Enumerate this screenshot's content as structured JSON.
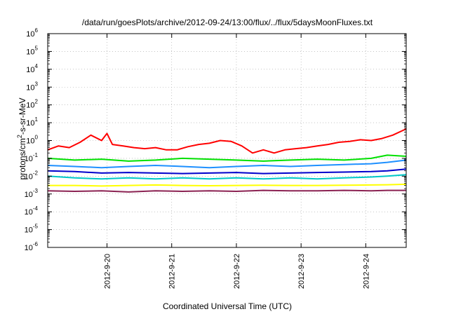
{
  "chart_data": {
    "type": "line",
    "title": "/data/run/goesPlots/archive/2012-09-24/13:00/flux/../flux/5daysMoonFluxes.txt",
    "xlabel": "Coordinated Universal Time (UTC)",
    "ylabel": {
      "pre": "protons/cm",
      "sup": "2",
      "post": "-s-sr-MeV"
    },
    "yscale": "log",
    "ylim": [
      1e-06,
      1000000.0
    ],
    "y_ticks": [
      {
        "mant": "10",
        "exp": "-6"
      },
      {
        "mant": "10",
        "exp": "-5"
      },
      {
        "mant": "10",
        "exp": "-4"
      },
      {
        "mant": "10",
        "exp": "-3"
      },
      {
        "mant": "10",
        "exp": "-2"
      },
      {
        "mant": "10",
        "exp": "-1"
      },
      {
        "mant": "10",
        "exp": "0"
      },
      {
        "mant": "10",
        "exp": "1"
      },
      {
        "mant": "10",
        "exp": "2"
      },
      {
        "mant": "10",
        "exp": "3"
      },
      {
        "mant": "10",
        "exp": "4"
      },
      {
        "mant": "10",
        "exp": "5"
      },
      {
        "mant": "10",
        "exp": "6"
      }
    ],
    "xlim": [
      "2012-09-19 02:00",
      "2012-09-24 15:00"
    ],
    "x_ticks": [
      "2012-9-20",
      "2012-9-21",
      "2012-9-22",
      "2012-9-23",
      "2012-9-24"
    ],
    "grid": true,
    "series": [
      {
        "color": "#ff0000",
        "x": [
          "2012-09-19 02:00",
          "2012-09-19 06:00",
          "2012-09-19 10:00",
          "2012-09-19 14:00",
          "2012-09-19 18:00",
          "2012-09-19 22:00",
          "2012-09-20 00:00",
          "2012-09-20 02:00",
          "2012-09-20 06:00",
          "2012-09-20 10:00",
          "2012-09-20 14:00",
          "2012-09-20 18:00",
          "2012-09-20 22:00",
          "2012-09-21 02:00",
          "2012-09-21 06:00",
          "2012-09-21 10:00",
          "2012-09-21 14:00",
          "2012-09-21 18:00",
          "2012-09-21 22:00",
          "2012-09-22 02:00",
          "2012-09-22 06:00",
          "2012-09-22 10:00",
          "2012-09-22 14:00",
          "2012-09-22 18:00",
          "2012-09-22 22:00",
          "2012-09-23 02:00",
          "2012-09-23 06:00",
          "2012-09-23 10:00",
          "2012-09-23 14:00",
          "2012-09-23 18:00",
          "2012-09-23 22:00",
          "2012-09-24 02:00",
          "2012-09-24 06:00",
          "2012-09-24 10:00",
          "2012-09-24 15:00"
        ],
        "values": [
          0.3,
          0.5,
          0.4,
          0.8,
          2.0,
          1.0,
          2.5,
          0.6,
          0.5,
          0.4,
          0.35,
          0.4,
          0.3,
          0.3,
          0.45,
          0.6,
          0.7,
          1.0,
          0.9,
          0.5,
          0.2,
          0.3,
          0.2,
          0.3,
          0.35,
          0.4,
          0.5,
          0.6,
          0.8,
          0.9,
          1.1,
          1.0,
          1.3,
          2.0,
          4.5
        ]
      },
      {
        "color": "#00e000",
        "x": [
          "2012-09-19 02:00",
          "2012-09-19 12:00",
          "2012-09-19 22:00",
          "2012-09-20 08:00",
          "2012-09-20 18:00",
          "2012-09-21 04:00",
          "2012-09-21 14:00",
          "2012-09-22 00:00",
          "2012-09-22 10:00",
          "2012-09-22 20:00",
          "2012-09-23 06:00",
          "2012-09-23 16:00",
          "2012-09-24 02:00",
          "2012-09-24 08:00",
          "2012-09-24 15:00"
        ],
        "values": [
          0.1,
          0.08,
          0.09,
          0.07,
          0.08,
          0.1,
          0.09,
          0.08,
          0.07,
          0.08,
          0.09,
          0.08,
          0.1,
          0.15,
          0.13
        ]
      },
      {
        "color": "#1e90ff",
        "x": [
          "2012-09-19 02:00",
          "2012-09-19 12:00",
          "2012-09-19 22:00",
          "2012-09-20 08:00",
          "2012-09-20 18:00",
          "2012-09-21 04:00",
          "2012-09-21 14:00",
          "2012-09-22 00:00",
          "2012-09-22 10:00",
          "2012-09-22 20:00",
          "2012-09-23 06:00",
          "2012-09-23 16:00",
          "2012-09-24 02:00",
          "2012-09-24 08:00",
          "2012-09-24 15:00"
        ],
        "values": [
          0.04,
          0.035,
          0.03,
          0.035,
          0.04,
          0.035,
          0.03,
          0.035,
          0.04,
          0.035,
          0.04,
          0.045,
          0.05,
          0.06,
          0.08
        ]
      },
      {
        "color": "#0000cc",
        "x": [
          "2012-09-19 02:00",
          "2012-09-19 12:00",
          "2012-09-19 22:00",
          "2012-09-20 08:00",
          "2012-09-20 18:00",
          "2012-09-21 04:00",
          "2012-09-21 14:00",
          "2012-09-22 00:00",
          "2012-09-22 10:00",
          "2012-09-22 20:00",
          "2012-09-23 06:00",
          "2012-09-23 16:00",
          "2012-09-24 02:00",
          "2012-09-24 08:00",
          "2012-09-24 15:00"
        ],
        "values": [
          0.02,
          0.018,
          0.015,
          0.016,
          0.015,
          0.014,
          0.015,
          0.016,
          0.014,
          0.015,
          0.016,
          0.017,
          0.018,
          0.02,
          0.025
        ]
      },
      {
        "color": "#00c8c8",
        "x": [
          "2012-09-19 02:00",
          "2012-09-19 12:00",
          "2012-09-19 22:00",
          "2012-09-20 08:00",
          "2012-09-20 18:00",
          "2012-09-21 04:00",
          "2012-09-21 14:00",
          "2012-09-22 00:00",
          "2012-09-22 10:00",
          "2012-09-22 20:00",
          "2012-09-23 06:00",
          "2012-09-23 16:00",
          "2012-09-24 02:00",
          "2012-09-24 08:00",
          "2012-09-24 15:00"
        ],
        "values": [
          0.01,
          0.008,
          0.007,
          0.008,
          0.007,
          0.008,
          0.007,
          0.008,
          0.007,
          0.008,
          0.007,
          0.008,
          0.009,
          0.01,
          0.012
        ]
      },
      {
        "color": "#ffff00",
        "x": [
          "2012-09-19 02:00",
          "2012-09-19 12:00",
          "2012-09-19 22:00",
          "2012-09-20 08:00",
          "2012-09-20 18:00",
          "2012-09-21 04:00",
          "2012-09-21 14:00",
          "2012-09-22 00:00",
          "2012-09-22 10:00",
          "2012-09-22 20:00",
          "2012-09-23 06:00",
          "2012-09-23 16:00",
          "2012-09-24 02:00",
          "2012-09-24 08:00",
          "2012-09-24 15:00"
        ],
        "values": [
          0.003,
          0.003,
          0.0028,
          0.003,
          0.0032,
          0.003,
          0.0029,
          0.003,
          0.0031,
          0.003,
          0.003,
          0.0031,
          0.0032,
          0.0033,
          0.0035
        ]
      },
      {
        "color": "#8b2252",
        "x": [
          "2012-09-19 02:00",
          "2012-09-19 12:00",
          "2012-09-19 22:00",
          "2012-09-20 08:00",
          "2012-09-20 18:00",
          "2012-09-21 04:00",
          "2012-09-21 14:00",
          "2012-09-22 00:00",
          "2012-09-22 10:00",
          "2012-09-22 20:00",
          "2012-09-23 06:00",
          "2012-09-23 16:00",
          "2012-09-24 02:00",
          "2012-09-24 08:00",
          "2012-09-24 15:00"
        ],
        "values": [
          0.0015,
          0.0014,
          0.0015,
          0.0013,
          0.0015,
          0.0014,
          0.0015,
          0.0014,
          0.0016,
          0.0015,
          0.0015,
          0.0016,
          0.0015,
          0.0016,
          0.0016
        ]
      }
    ]
  }
}
